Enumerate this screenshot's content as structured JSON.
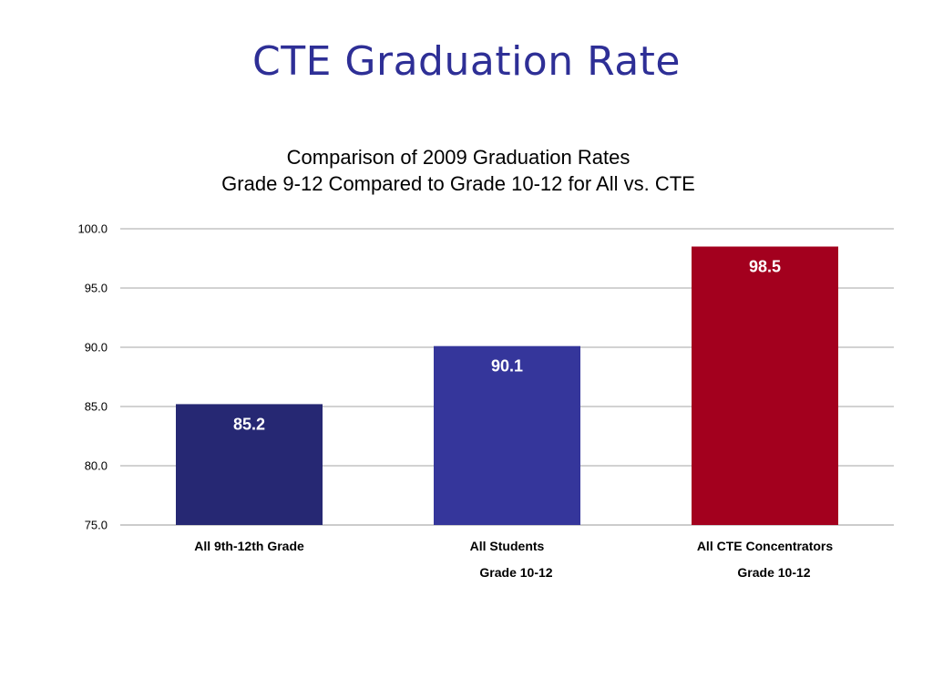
{
  "slide": {
    "title": "CTE Graduation Rate"
  },
  "chart_data": {
    "type": "bar",
    "title_lines": [
      "Comparison of 2009 Graduation Rates",
      "Grade 9-12 Compared to Grade 10-12 for All vs. CTE"
    ],
    "categories": [
      [
        "All 9th-12th Grade"
      ],
      [
        "All Students",
        "Grade 10-12"
      ],
      [
        "All CTE Concentrators",
        "Grade 10-12"
      ]
    ],
    "values": [
      85.2,
      90.1,
      98.5
    ],
    "data_labels": [
      "85.2",
      "90.1",
      "98.5"
    ],
    "bar_colors": [
      "#262873",
      "#35369b",
      "#a3001e"
    ],
    "ylim": [
      75,
      100
    ],
    "yticks": [
      "75.0",
      "80.0",
      "85.0",
      "90.0",
      "95.0",
      "100.0"
    ],
    "ytick_values": [
      75,
      80,
      85,
      90,
      95,
      100
    ],
    "grid": true,
    "legend": "none",
    "xlabel": "",
    "ylabel": ""
  }
}
